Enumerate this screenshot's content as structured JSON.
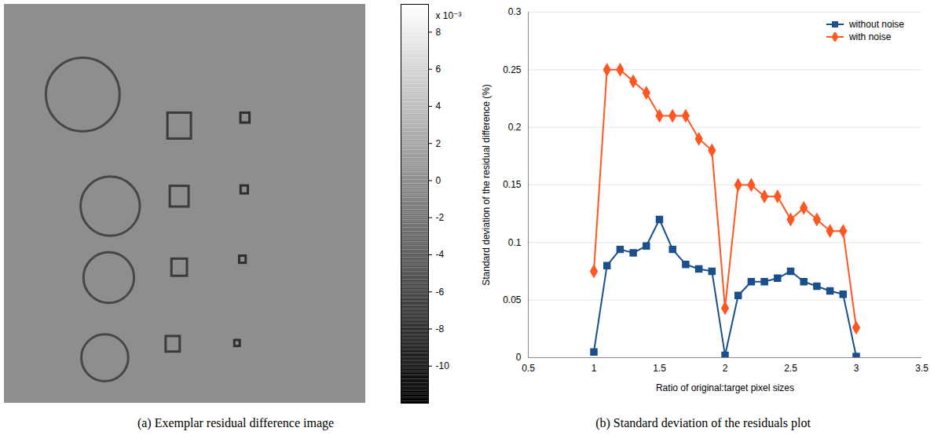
{
  "chart_data": [
    {
      "type": "image",
      "caption": "(a) Exemplar residual difference image",
      "xlim": [
        0,
        100
      ],
      "ylim": [
        0,
        100
      ],
      "tick_labels": false,
      "background_value": 0,
      "features": [
        {
          "shape": "circle",
          "x": 21.7,
          "y": 22.6,
          "size": 10.2,
          "value": -6
        },
        {
          "shape": "circle",
          "x": 29.3,
          "y": 50.6,
          "size": 8.2,
          "value": -6
        },
        {
          "shape": "circle",
          "x": 28.9,
          "y": 68.5,
          "size": 7,
          "value": -6
        },
        {
          "shape": "circle",
          "x": 27.8,
          "y": 88.6,
          "size": 6.5,
          "value": -6
        },
        {
          "shape": "square",
          "x": 48.5,
          "y": 30.5,
          "size": 6.5,
          "value": -7
        },
        {
          "shape": "square",
          "x": 48.5,
          "y": 48.2,
          "size": 5.2,
          "value": -7
        },
        {
          "shape": "square",
          "x": 48.5,
          "y": 66,
          "size": 4.3,
          "value": -7
        },
        {
          "shape": "square",
          "x": 46.7,
          "y": 85.2,
          "size": 3.9,
          "value": -7
        },
        {
          "shape": "square",
          "x": 66.7,
          "y": 28.5,
          "size": 2.5,
          "value": -8
        },
        {
          "shape": "square",
          "x": 66.5,
          "y": 46.5,
          "size": 2,
          "value": -8
        },
        {
          "shape": "square",
          "x": 66,
          "y": 64,
          "size": 1.8,
          "value": -8
        },
        {
          "shape": "square",
          "x": 64.5,
          "y": 85,
          "size": 1.5,
          "value": -8
        }
      ],
      "colorbar": {
        "range": [
          -12,
          9.5
        ],
        "ticks": [
          -10,
          -8,
          -6,
          -4,
          -2,
          0,
          2,
          4,
          6,
          8
        ],
        "label": "x 10⁻³"
      }
    },
    {
      "type": "line",
      "caption": "(b) Standard deviation of the residuals plot",
      "x_label": "Ratio of original:target pixel sizes",
      "y_label": "Standard deviation of the residual difference (%)",
      "x": [
        1,
        1.1,
        1.2,
        1.3,
        1.4,
        1.5,
        1.6,
        1.7,
        1.8,
        1.9,
        2,
        2.1,
        2.2,
        2.3,
        2.4,
        2.5,
        2.6,
        2.7,
        2.8,
        2.9,
        3
      ],
      "series": [
        {
          "name": "without noise",
          "color": "#1a4f8b",
          "marker": "square",
          "values": [
            0.005,
            0.08,
            0.094,
            0.091,
            0.097,
            0.12,
            0.094,
            0.081,
            0.077,
            0.075,
            0.002,
            0.054,
            0.066,
            0.066,
            0.069,
            0.075,
            0.066,
            0.062,
            0.058,
            0.055,
            0.001
          ]
        },
        {
          "name": "with noise",
          "color": "#ff5722",
          "marker": "diamond",
          "values": [
            0.075,
            0.25,
            0.25,
            0.24,
            0.23,
            0.21,
            0.21,
            0.21,
            0.19,
            0.18,
            0.043,
            0.15,
            0.15,
            0.14,
            0.14,
            0.12,
            0.13,
            0.12,
            0.11,
            0.11,
            0.026
          ]
        }
      ],
      "xlim": [
        0.5,
        3.5
      ],
      "xticks": [
        0.5,
        1,
        1.5,
        2,
        2.5,
        3,
        3.5
      ],
      "ylim": [
        0,
        0.3
      ],
      "yticks": [
        0,
        0.05,
        0.1,
        0.15,
        0.2,
        0.25,
        0.3
      ],
      "grid": true,
      "legend": "top-right"
    }
  ]
}
